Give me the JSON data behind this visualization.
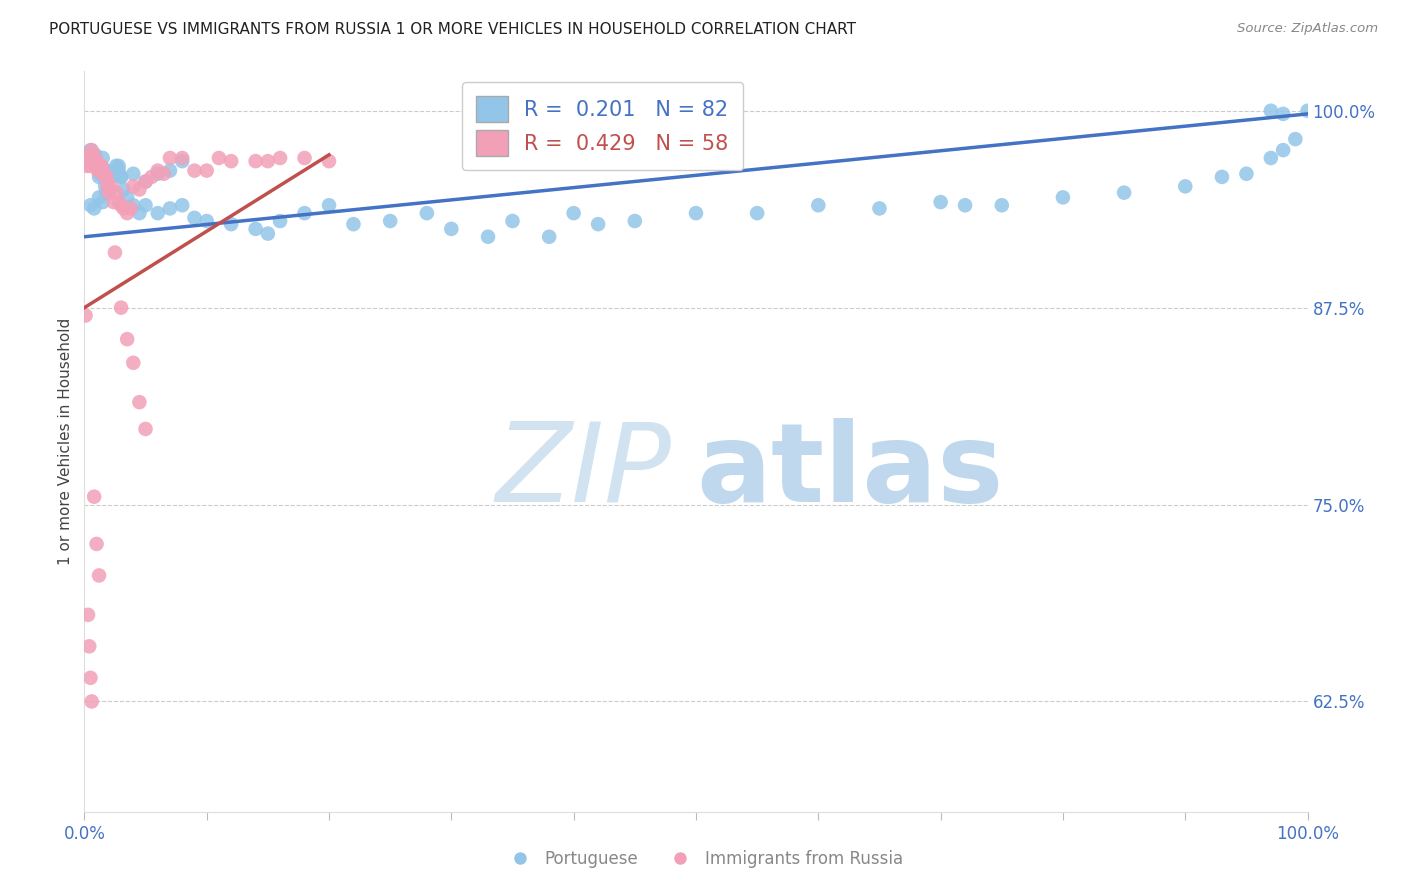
{
  "title": "PORTUGUESE VS IMMIGRANTS FROM RUSSIA 1 OR MORE VEHICLES IN HOUSEHOLD CORRELATION CHART",
  "source": "Source: ZipAtlas.com",
  "ylabel": "1 or more Vehicles in Household",
  "xlim": [
    0.0,
    1.0
  ],
  "ylim": [
    0.555,
    1.025
  ],
  "yticks": [
    0.625,
    0.75,
    0.875,
    1.0
  ],
  "ytick_labels": [
    "62.5%",
    "75.0%",
    "87.5%",
    "100.0%"
  ],
  "blue_R": 0.201,
  "blue_N": 82,
  "pink_R": 0.429,
  "pink_N": 58,
  "blue_color": "#92c5e8",
  "pink_color": "#f2a0b8",
  "blue_line_color": "#4472c4",
  "pink_line_color": "#c0504d",
  "blue_x": [
    0.002,
    0.003,
    0.004,
    0.005,
    0.006,
    0.007,
    0.008,
    0.009,
    0.01,
    0.011,
    0.012,
    0.013,
    0.014,
    0.015,
    0.016,
    0.017,
    0.018,
    0.019,
    0.02,
    0.022,
    0.024,
    0.026,
    0.028,
    0.03,
    0.032,
    0.035,
    0.04,
    0.045,
    0.05,
    0.06,
    0.07,
    0.08,
    0.09,
    0.1,
    0.12,
    0.14,
    0.15,
    0.16,
    0.18,
    0.2,
    0.22,
    0.25,
    0.28,
    0.3,
    0.33,
    0.35,
    0.38,
    0.4,
    0.42,
    0.45,
    0.5,
    0.55,
    0.6,
    0.65,
    0.7,
    0.72,
    0.75,
    0.8,
    0.85,
    0.9,
    0.93,
    0.95,
    0.97,
    0.98,
    0.99,
    1.0,
    0.97,
    0.98,
    0.005,
    0.008,
    0.012,
    0.015,
    0.018,
    0.02,
    0.025,
    0.028,
    0.03,
    0.04,
    0.05,
    0.06,
    0.07,
    0.08
  ],
  "blue_y": [
    0.972,
    0.968,
    0.97,
    0.975,
    0.97,
    0.968,
    0.97,
    0.972,
    0.965,
    0.965,
    0.958,
    0.96,
    0.962,
    0.97,
    0.958,
    0.952,
    0.962,
    0.96,
    0.958,
    0.958,
    0.96,
    0.965,
    0.962,
    0.958,
    0.95,
    0.945,
    0.94,
    0.935,
    0.94,
    0.935,
    0.938,
    0.94,
    0.932,
    0.93,
    0.928,
    0.925,
    0.922,
    0.93,
    0.935,
    0.94,
    0.928,
    0.93,
    0.935,
    0.925,
    0.92,
    0.93,
    0.92,
    0.935,
    0.928,
    0.93,
    0.935,
    0.935,
    0.94,
    0.938,
    0.942,
    0.94,
    0.94,
    0.945,
    0.948,
    0.952,
    0.958,
    0.96,
    0.97,
    0.975,
    0.982,
    1.0,
    1.0,
    0.998,
    0.94,
    0.938,
    0.945,
    0.942,
    0.948,
    0.95,
    0.96,
    0.965,
    0.958,
    0.96,
    0.955,
    0.96,
    0.962,
    0.968
  ],
  "pink_x": [
    0.001,
    0.002,
    0.003,
    0.004,
    0.005,
    0.006,
    0.007,
    0.008,
    0.009,
    0.01,
    0.011,
    0.012,
    0.013,
    0.014,
    0.015,
    0.016,
    0.017,
    0.018,
    0.019,
    0.02,
    0.022,
    0.024,
    0.026,
    0.028,
    0.03,
    0.032,
    0.035,
    0.038,
    0.04,
    0.045,
    0.05,
    0.055,
    0.06,
    0.065,
    0.07,
    0.08,
    0.09,
    0.1,
    0.11,
    0.12,
    0.14,
    0.15,
    0.16,
    0.18,
    0.2,
    0.025,
    0.03,
    0.035,
    0.04,
    0.045,
    0.05,
    0.008,
    0.01,
    0.012,
    0.003,
    0.004,
    0.005,
    0.006
  ],
  "pink_y": [
    0.87,
    0.965,
    0.97,
    0.972,
    0.965,
    0.975,
    0.97,
    0.968,
    0.97,
    0.965,
    0.962,
    0.962,
    0.965,
    0.965,
    0.962,
    0.96,
    0.958,
    0.958,
    0.952,
    0.948,
    0.952,
    0.942,
    0.948,
    0.942,
    0.94,
    0.938,
    0.935,
    0.938,
    0.952,
    0.95,
    0.955,
    0.958,
    0.962,
    0.96,
    0.97,
    0.97,
    0.962,
    0.962,
    0.97,
    0.968,
    0.968,
    0.968,
    0.97,
    0.97,
    0.968,
    0.91,
    0.875,
    0.855,
    0.84,
    0.815,
    0.798,
    0.755,
    0.725,
    0.705,
    0.68,
    0.66,
    0.64,
    0.625
  ],
  "blue_trendline_x": [
    0.0,
    1.0
  ],
  "blue_trendline_y": [
    0.92,
    0.998
  ],
  "pink_trendline_x": [
    0.0,
    0.2
  ],
  "pink_trendline_y": [
    0.875,
    0.972
  ]
}
